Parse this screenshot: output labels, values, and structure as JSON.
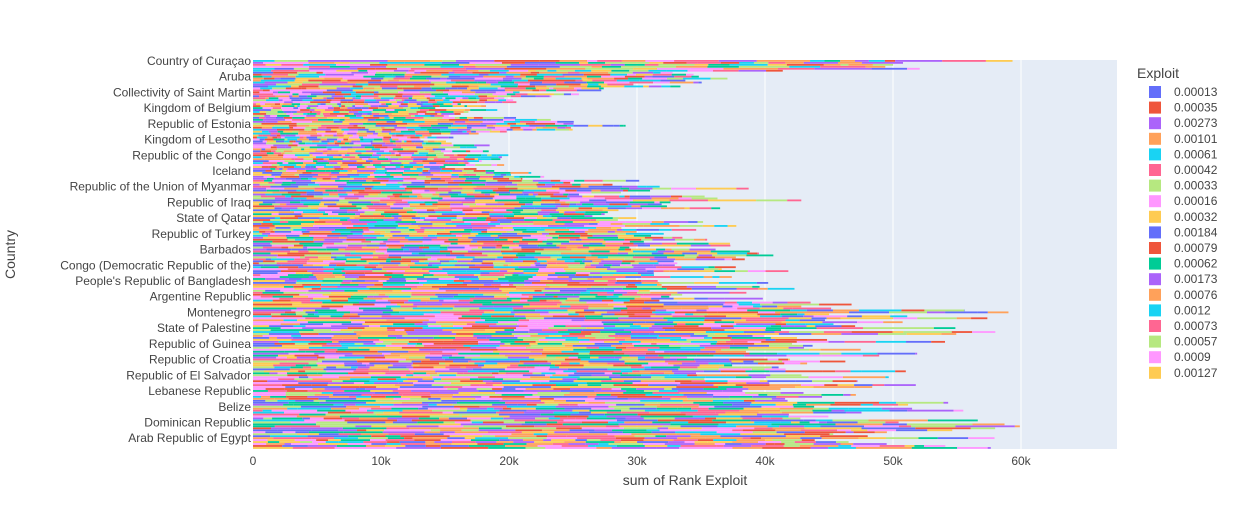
{
  "chart_data": {
    "type": "bar",
    "orientation": "horizontal",
    "barmode": "stack",
    "xlabel": "sum of Rank Exploit",
    "ylabel": "Country",
    "xlim": [
      0,
      67500
    ],
    "x_ticks": [
      {
        "value": 0,
        "label": "0"
      },
      {
        "value": 10000,
        "label": "10k"
      },
      {
        "value": 20000,
        "label": "20k"
      },
      {
        "value": 30000,
        "label": "30k"
      },
      {
        "value": 40000,
        "label": "40k"
      },
      {
        "value": 50000,
        "label": "50k"
      },
      {
        "value": 60000,
        "label": "60k"
      }
    ],
    "grid": true,
    "category_count": 198,
    "visible_y_ticks": [
      {
        "index": 197,
        "label": "Country of Curaçao"
      },
      {
        "index": 189,
        "label": "Aruba"
      },
      {
        "index": 181,
        "label": "Collectivity of Saint Martin"
      },
      {
        "index": 173,
        "label": "Kingdom of Belgium"
      },
      {
        "index": 165,
        "label": "Republic of Estonia"
      },
      {
        "index": 157,
        "label": "Kingdom of Lesotho"
      },
      {
        "index": 149,
        "label": "Republic of the Congo"
      },
      {
        "index": 141,
        "label": "Iceland"
      },
      {
        "index": 133,
        "label": "Republic of the Union of Myanmar"
      },
      {
        "index": 125,
        "label": "Republic of Iraq"
      },
      {
        "index": 117,
        "label": "State of Qatar"
      },
      {
        "index": 109,
        "label": "Republic of Turkey"
      },
      {
        "index": 101,
        "label": "Barbados"
      },
      {
        "index": 93,
        "label": "Congo (Democratic Republic of the)"
      },
      {
        "index": 85,
        "label": "People's Republic of Bangladesh"
      },
      {
        "index": 77,
        "label": "Argentine Republic"
      },
      {
        "index": 69,
        "label": "Montenegro"
      },
      {
        "index": 61,
        "label": "State of Palestine"
      },
      {
        "index": 53,
        "label": "Republic of Guinea"
      },
      {
        "index": 45,
        "label": "Republic of Croatia"
      },
      {
        "index": 37,
        "label": "Republic of El Salvador"
      },
      {
        "index": 29,
        "label": "Lebanese Republic"
      },
      {
        "index": 21,
        "label": "Belize"
      },
      {
        "index": 13,
        "label": "Dominican Republic"
      },
      {
        "index": 5,
        "label": "Arab Republic of Egypt"
      }
    ],
    "country_totals_approx": [
      {
        "label": "Country of Curaçao",
        "total": 63800
      },
      {
        "label": "Aruba",
        "total": 38000
      },
      {
        "label": "Collectivity of Saint Martin",
        "total": 32000
      },
      {
        "label": "Kingdom of Belgium",
        "total": 18500
      },
      {
        "label": "Republic of Estonia",
        "total": 30000
      },
      {
        "label": "Kingdom of Lesotho",
        "total": 16500
      },
      {
        "label": "Republic of the Congo",
        "total": 21000
      },
      {
        "label": "Iceland",
        "total": 20000
      },
      {
        "label": "Republic of the Union of Myanmar",
        "total": 37500
      },
      {
        "label": "Republic of Iraq",
        "total": 45000
      },
      {
        "label": "State of Qatar",
        "total": 32500
      },
      {
        "label": "Republic of Turkey",
        "total": 42000
      },
      {
        "label": "Barbados",
        "total": 41000
      },
      {
        "label": "Congo (Democratic Republic of the)",
        "total": 44500
      },
      {
        "label": "People's Republic of Bangladesh",
        "total": 38500
      },
      {
        "label": "Argentine Republic",
        "total": 45000
      },
      {
        "label": "Montenegro",
        "total": 58800
      },
      {
        "label": "State of Palestine",
        "total": 57500
      },
      {
        "label": "Republic of Guinea",
        "total": 52000
      },
      {
        "label": "Republic of Croatia",
        "total": 49000
      },
      {
        "label": "Republic of El Salvador",
        "total": 54000
      },
      {
        "label": "Lebanese Republic",
        "total": 53000
      },
      {
        "label": "Belize",
        "total": 56500
      },
      {
        "label": "Dominican Republic",
        "total": 59000
      },
      {
        "label": "Arab Republic of Egypt",
        "total": 62000
      }
    ],
    "legend": {
      "title": "Exploit",
      "placement": "right",
      "entries": [
        {
          "name": "0.00013",
          "color": "#636efa"
        },
        {
          "name": "0.00035",
          "color": "#EF553B"
        },
        {
          "name": "0.00273",
          "color": "#ab63fa"
        },
        {
          "name": "0.00101",
          "color": "#FFA15A"
        },
        {
          "name": "0.00061",
          "color": "#19d3f3"
        },
        {
          "name": "0.00042",
          "color": "#FF6692"
        },
        {
          "name": "0.00033",
          "color": "#B6E880"
        },
        {
          "name": "0.00016",
          "color": "#FF97FF"
        },
        {
          "name": "0.00032",
          "color": "#FECB52"
        },
        {
          "name": "0.00184",
          "color": "#636efa"
        },
        {
          "name": "0.00079",
          "color": "#EF553B"
        },
        {
          "name": "0.00062",
          "color": "#00cc96"
        },
        {
          "name": "0.00173",
          "color": "#ab63fa"
        },
        {
          "name": "0.00076",
          "color": "#FFA15A"
        },
        {
          "name": "0.0012",
          "color": "#19d3f3"
        },
        {
          "name": "0.00073",
          "color": "#FF6692"
        },
        {
          "name": "0.00057",
          "color": "#B6E880"
        },
        {
          "name": "0.0009",
          "color": "#FF97FF"
        },
        {
          "name": "0.00127",
          "color": "#FECB52"
        }
      ]
    },
    "palette": [
      "#636efa",
      "#EF553B",
      "#00cc96",
      "#ab63fa",
      "#FFA15A",
      "#19d3f3",
      "#FF6692",
      "#B6E880",
      "#FF97FF",
      "#FECB52"
    ],
    "plot_background": "#E5ECF6"
  }
}
